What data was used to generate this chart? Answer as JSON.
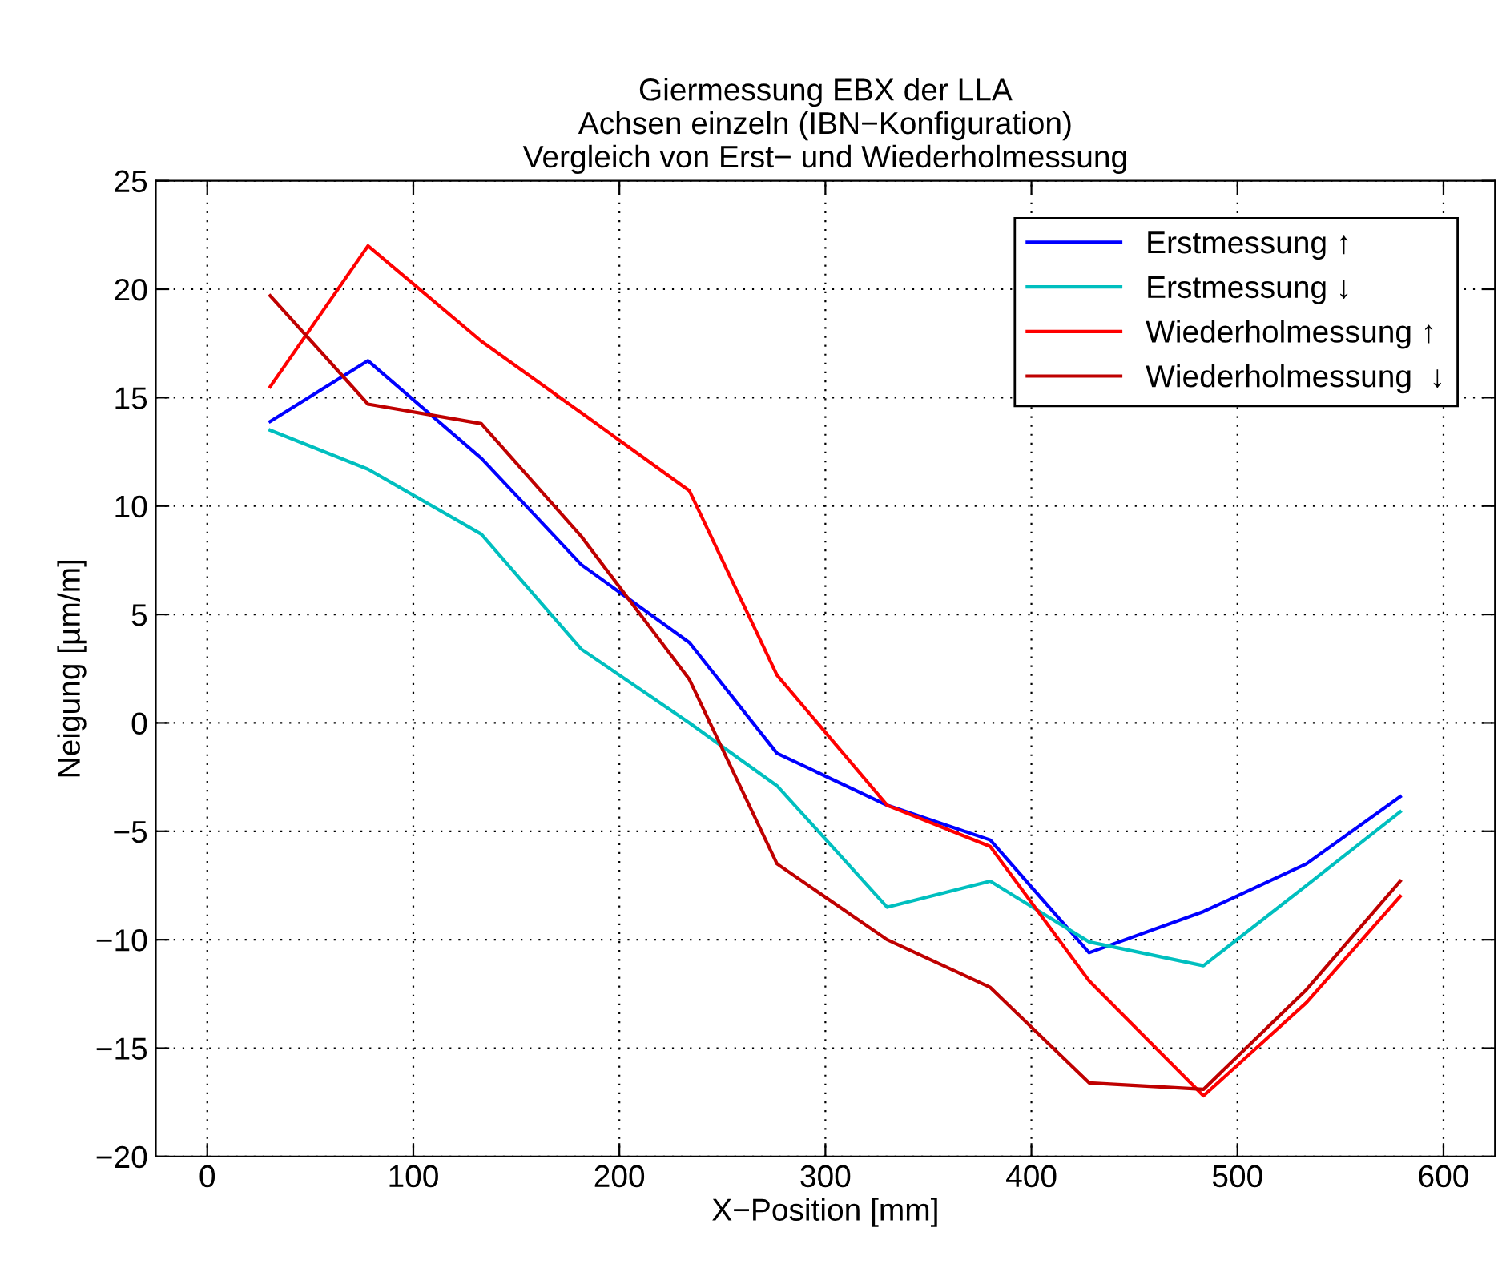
{
  "chart_data": {
    "type": "line",
    "title": "Giermessung EBX der LLA\nAchsen einzeln (IBN−Konfiguration)\nVergleich von Erst− und Wiederholmessung",
    "xlabel": "X−Position [mm]",
    "ylabel": "Neigung [µm/m]",
    "x": [
      30.5,
      78,
      133,
      181.5,
      234,
      276.5,
      330,
      380,
      428,
      483.5,
      533.5,
      579
    ],
    "series": [
      {
        "name": "Erstmessung ↑",
        "color": "#0000ff",
        "values": [
          13.9,
          16.7,
          12.2,
          7.3,
          3.7,
          -1.4,
          -3.8,
          -5.4,
          -10.6,
          -8.7,
          -6.5,
          -3.4
        ]
      },
      {
        "name": "Erstmessung ↓",
        "color": "#00bfbf",
        "values": [
          13.5,
          11.7,
          8.7,
          3.4,
          0.0,
          -2.9,
          -8.5,
          -7.3,
          -10.1,
          -11.2,
          -7.5,
          -4.1
        ]
      },
      {
        "name": "Wiederholmessung ↑",
        "color": "#ff0000",
        "values": [
          15.5,
          22.0,
          17.6,
          14.3,
          10.7,
          2.2,
          -3.8,
          -5.7,
          -11.9,
          -17.2,
          -12.9,
          -8.0
        ]
      },
      {
        "name": "Wiederholmessung  ↓",
        "color": "#bf0000",
        "values": [
          19.7,
          14.7,
          13.8,
          8.6,
          2.0,
          -6.5,
          -10.0,
          -12.2,
          -16.6,
          -16.9,
          -12.3,
          -7.3
        ]
      }
    ],
    "xlim": [
      -25,
      625
    ],
    "xticks": [
      0,
      100,
      200,
      300,
      400,
      500,
      600
    ],
    "ylim": [
      -20,
      25
    ],
    "yticks": [
      -20,
      -15,
      -10,
      -5,
      0,
      5,
      10,
      15,
      20,
      25
    ],
    "grid": true,
    "legend": "top right",
    "line_style": "solid",
    "marker": "none"
  }
}
